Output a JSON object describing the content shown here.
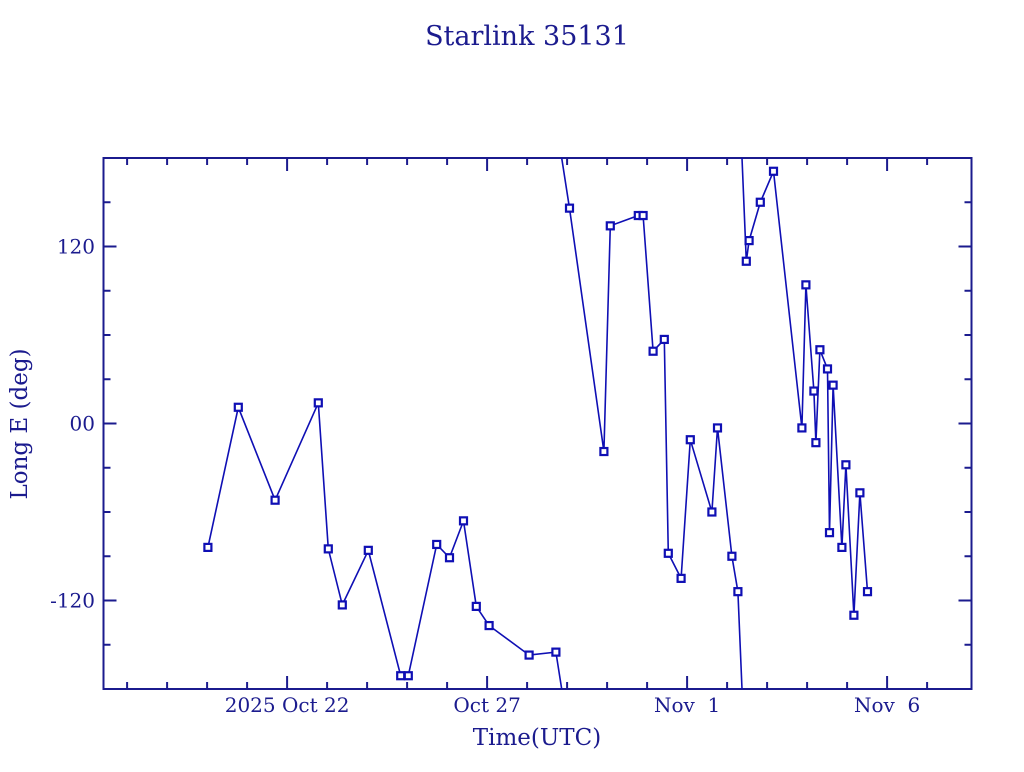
{
  "title": "Starlink 35131",
  "colors": {
    "background": "#ffffff",
    "ink": "#1b1b8e",
    "plot": "#0f0fb4",
    "marker_fill": "#ffffff"
  },
  "chart_data": {
    "type": "line",
    "title": "Starlink 35131",
    "xlabel": "Time(UTC)",
    "ylabel": "Long E (deg)",
    "x_unit_note": "t = days since 2025 Oct 22 00:00 UTC",
    "xlim": [
      -4.59,
      17.11
    ],
    "ylim": [
      -180,
      180
    ],
    "grid": false,
    "legend_position": "none",
    "marker": "open-square",
    "wrap_at": 180,
    "x_major_ticks": [
      {
        "t": 0,
        "label": "2025 Oct 22"
      },
      {
        "t": 5,
        "label": "Oct 27"
      },
      {
        "t": 10,
        "label": "Nov  1"
      },
      {
        "t": 15,
        "label": "Nov  6"
      }
    ],
    "x_minor_ticks_from": -4,
    "x_minor_ticks_to": 16,
    "x_minor_step_days": 1,
    "y_major_ticks": [
      {
        "v": 120,
        "label": "120"
      },
      {
        "v": 0,
        "label": "00"
      },
      {
        "v": -120,
        "label": "-120"
      }
    ],
    "y_minor_step": 30,
    "points": [
      {
        "t": -1.98,
        "v": -84
      },
      {
        "t": -1.22,
        "v": 11
      },
      {
        "t": -0.3,
        "v": -52
      },
      {
        "t": 0.78,
        "v": 14
      },
      {
        "t": 1.03,
        "v": -85
      },
      {
        "t": 1.38,
        "v": -123
      },
      {
        "t": 2.03,
        "v": -86
      },
      {
        "t": 2.84,
        "v": -171
      },
      {
        "t": 3.03,
        "v": -171
      },
      {
        "t": 3.74,
        "v": -82
      },
      {
        "t": 4.06,
        "v": -91
      },
      {
        "t": 4.41,
        "v": -66
      },
      {
        "t": 4.73,
        "v": -124
      },
      {
        "t": 5.05,
        "v": -137
      },
      {
        "t": 6.05,
        "v": -157
      },
      {
        "t": 6.72,
        "v": -155
      },
      {
        "t": 7.06,
        "v": 146
      },
      {
        "t": 7.92,
        "v": -19
      },
      {
        "t": 8.08,
        "v": 134
      },
      {
        "t": 8.78,
        "v": 141
      },
      {
        "t": 8.9,
        "v": 141
      },
      {
        "t": 9.15,
        "v": 49
      },
      {
        "t": 9.43,
        "v": 57
      },
      {
        "t": 9.53,
        "v": -88
      },
      {
        "t": 9.85,
        "v": -105
      },
      {
        "t": 10.08,
        "v": -11
      },
      {
        "t": 10.62,
        "v": -60
      },
      {
        "t": 10.76,
        "v": -3
      },
      {
        "t": 11.12,
        "v": -90
      },
      {
        "t": 11.27,
        "v": -114
      },
      {
        "t": 11.48,
        "v": 110
      },
      {
        "t": 11.55,
        "v": 124
      },
      {
        "t": 11.83,
        "v": 150
      },
      {
        "t": 12.16,
        "v": 171
      },
      {
        "t": 12.87,
        "v": -3
      },
      {
        "t": 12.97,
        "v": 94
      },
      {
        "t": 13.17,
        "v": 22
      },
      {
        "t": 13.22,
        "v": -13
      },
      {
        "t": 13.32,
        "v": 50
      },
      {
        "t": 13.51,
        "v": 37
      },
      {
        "t": 13.56,
        "v": -74
      },
      {
        "t": 13.65,
        "v": 26
      },
      {
        "t": 13.87,
        "v": -84
      },
      {
        "t": 13.97,
        "v": -28
      },
      {
        "t": 14.17,
        "v": -130
      },
      {
        "t": 14.32,
        "v": -47
      },
      {
        "t": 14.51,
        "v": -114
      }
    ]
  }
}
